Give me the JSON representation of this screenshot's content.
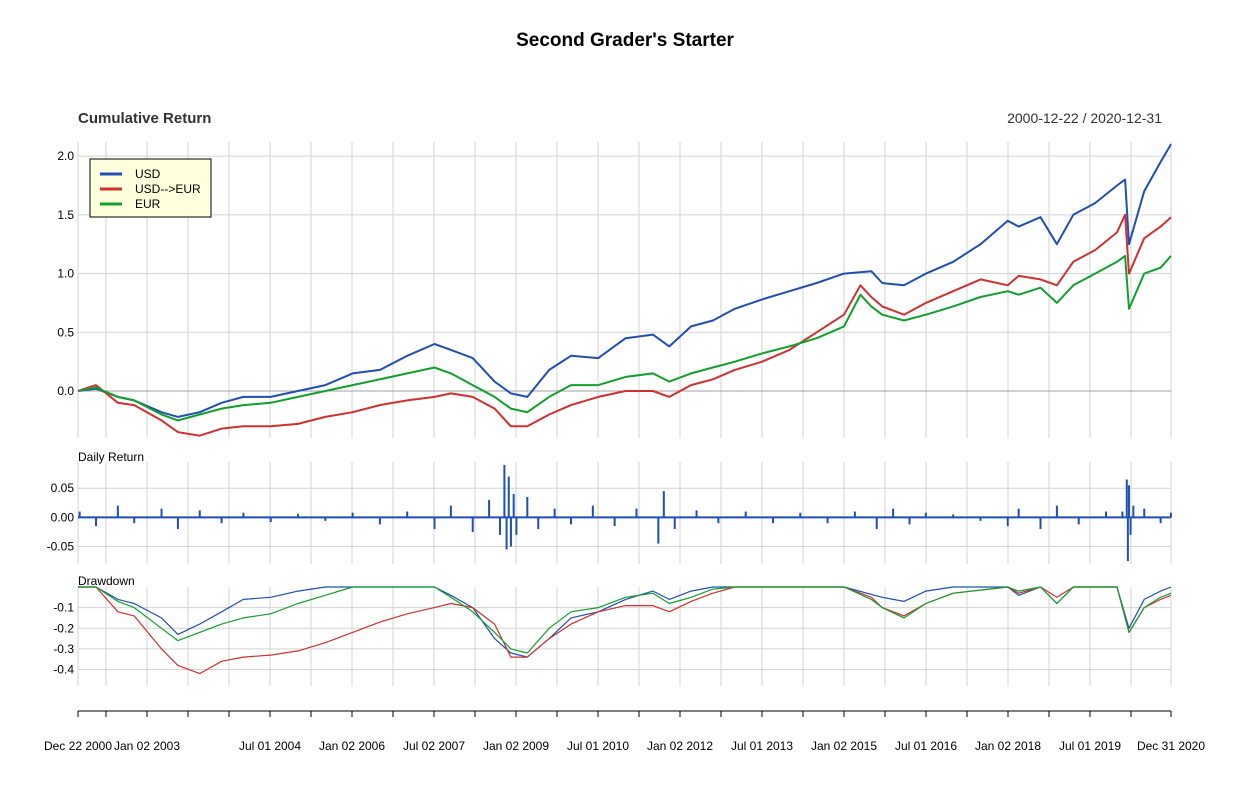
{
  "title": "Second Grader's Starter",
  "panels": {
    "cumulative": {
      "label": "Cumulative Return",
      "date_range": "2000-12-22 / 2020-12-31"
    },
    "daily": {
      "label": "Daily Return"
    },
    "drawdown": {
      "label": "Drawdown"
    }
  },
  "legend": [
    {
      "name": "USD",
      "color": "#1f4fb2"
    },
    {
      "name": "USD-->EUR",
      "color": "#d03030"
    },
    {
      "name": "EUR",
      "color": "#12a02c"
    }
  ],
  "x_axis": {
    "labels": [
      "Dec 22 2000",
      "Jan 02 2003",
      "Jul 01 2004",
      "Jan 02 2006",
      "Jul 02 2007",
      "Jan 02 2009",
      "Jul 01 2010",
      "Jan 02 2012",
      "Jul 01 2013",
      "Jan 02 2015",
      "Jul 01 2016",
      "Jan 02 2018",
      "Jul 01 2019",
      "Dec 31 2020"
    ]
  },
  "chart_data": [
    {
      "type": "line",
      "title": "Cumulative Return",
      "x_range": [
        2000.97,
        2020.99
      ],
      "ylim": [
        -0.4,
        2.12
      ],
      "y_ticks": [
        "0.0",
        "0.5",
        "1.0",
        "1.5",
        "2.0"
      ],
      "series": [
        {
          "name": "USD",
          "color": "#1f4fb2",
          "x": [
            2000.97,
            2001.3,
            2001.7,
            2002.0,
            2002.5,
            2002.8,
            2003.2,
            2003.6,
            2004.0,
            2004.5,
            2005.0,
            2005.5,
            2006.0,
            2006.5,
            2007.0,
            2007.5,
            2007.8,
            2008.2,
            2008.6,
            2008.9,
            2009.2,
            2009.6,
            2010.0,
            2010.5,
            2011.0,
            2011.5,
            2011.8,
            2012.2,
            2012.6,
            2013.0,
            2013.5,
            2014.0,
            2014.5,
            2015.0,
            2015.5,
            2015.7,
            2016.1,
            2016.5,
            2017.0,
            2017.5,
            2018.0,
            2018.2,
            2018.6,
            2018.9,
            2019.2,
            2019.6,
            2020.0,
            2020.15,
            2020.22,
            2020.5,
            2020.8,
            2020.99
          ],
          "y": [
            0.0,
            0.02,
            -0.05,
            -0.08,
            -0.18,
            -0.22,
            -0.18,
            -0.1,
            -0.05,
            -0.05,
            0.0,
            0.05,
            0.15,
            0.18,
            0.3,
            0.4,
            0.35,
            0.28,
            0.08,
            -0.02,
            -0.05,
            0.18,
            0.3,
            0.28,
            0.45,
            0.48,
            0.38,
            0.55,
            0.6,
            0.7,
            0.78,
            0.85,
            0.92,
            1.0,
            1.02,
            0.92,
            0.9,
            1.0,
            1.1,
            1.25,
            1.45,
            1.4,
            1.48,
            1.25,
            1.5,
            1.6,
            1.75,
            1.8,
            1.25,
            1.7,
            1.95,
            2.1
          ]
        },
        {
          "name": "USD-->EUR",
          "color": "#d03030",
          "x": [
            2000.97,
            2001.3,
            2001.7,
            2002.0,
            2002.5,
            2002.8,
            2003.2,
            2003.6,
            2004.0,
            2004.5,
            2005.0,
            2005.5,
            2006.0,
            2006.5,
            2007.0,
            2007.5,
            2007.8,
            2008.2,
            2008.6,
            2008.9,
            2009.2,
            2009.6,
            2010.0,
            2010.5,
            2011.0,
            2011.5,
            2011.8,
            2012.2,
            2012.6,
            2013.0,
            2013.5,
            2014.0,
            2014.5,
            2015.0,
            2015.3,
            2015.5,
            2015.7,
            2016.1,
            2016.5,
            2017.0,
            2017.5,
            2018.0,
            2018.2,
            2018.6,
            2018.9,
            2019.2,
            2019.6,
            2020.0,
            2020.15,
            2020.22,
            2020.5,
            2020.8,
            2020.99
          ],
          "y": [
            0.0,
            0.05,
            -0.1,
            -0.12,
            -0.25,
            -0.35,
            -0.38,
            -0.32,
            -0.3,
            -0.3,
            -0.28,
            -0.22,
            -0.18,
            -0.12,
            -0.08,
            -0.05,
            -0.02,
            -0.05,
            -0.15,
            -0.3,
            -0.3,
            -0.2,
            -0.12,
            -0.05,
            0.0,
            0.0,
            -0.05,
            0.05,
            0.1,
            0.18,
            0.25,
            0.35,
            0.5,
            0.65,
            0.9,
            0.8,
            0.72,
            0.65,
            0.75,
            0.85,
            0.95,
            0.9,
            0.98,
            0.95,
            0.9,
            1.1,
            1.2,
            1.35,
            1.5,
            1.0,
            1.3,
            1.4,
            1.48
          ]
        },
        {
          "name": "EUR",
          "color": "#12a02c",
          "x": [
            2000.97,
            2001.3,
            2001.7,
            2002.0,
            2002.5,
            2002.8,
            2003.2,
            2003.6,
            2004.0,
            2004.5,
            2005.0,
            2005.5,
            2006.0,
            2006.5,
            2007.0,
            2007.5,
            2007.8,
            2008.2,
            2008.6,
            2008.9,
            2009.2,
            2009.6,
            2010.0,
            2010.5,
            2011.0,
            2011.5,
            2011.8,
            2012.2,
            2012.6,
            2013.0,
            2013.5,
            2014.0,
            2014.5,
            2015.0,
            2015.3,
            2015.5,
            2015.7,
            2016.1,
            2016.5,
            2017.0,
            2017.5,
            2018.0,
            2018.2,
            2018.6,
            2018.9,
            2019.2,
            2019.6,
            2020.0,
            2020.15,
            2020.22,
            2020.5,
            2020.8,
            2020.99
          ],
          "y": [
            0.0,
            0.03,
            -0.05,
            -0.08,
            -0.2,
            -0.25,
            -0.2,
            -0.15,
            -0.12,
            -0.1,
            -0.05,
            0.0,
            0.05,
            0.1,
            0.15,
            0.2,
            0.15,
            0.05,
            -0.05,
            -0.15,
            -0.18,
            -0.05,
            0.05,
            0.05,
            0.12,
            0.15,
            0.08,
            0.15,
            0.2,
            0.25,
            0.32,
            0.38,
            0.45,
            0.55,
            0.82,
            0.72,
            0.65,
            0.6,
            0.65,
            0.72,
            0.8,
            0.85,
            0.82,
            0.88,
            0.75,
            0.9,
            1.0,
            1.1,
            1.15,
            0.7,
            1.0,
            1.05,
            1.15
          ]
        }
      ]
    },
    {
      "type": "bar",
      "title": "Daily Return",
      "x_range": [
        2000.97,
        2020.99
      ],
      "ylim": [
        -0.08,
        0.095
      ],
      "y_ticks": [
        "-0.05",
        "0.00",
        "0.05"
      ],
      "series": [
        {
          "name": "USD",
          "color": "#1f4fb2",
          "x": [
            2001.0,
            2001.3,
            2001.7,
            2002.0,
            2002.5,
            2002.8,
            2003.2,
            2003.6,
            2004.0,
            2004.5,
            2005.0,
            2005.5,
            2006.0,
            2006.5,
            2007.0,
            2007.5,
            2007.8,
            2008.2,
            2008.5,
            2008.7,
            2008.78,
            2008.82,
            2008.86,
            2008.9,
            2008.95,
            2009.0,
            2009.2,
            2009.4,
            2009.7,
            2010.0,
            2010.4,
            2010.8,
            2011.2,
            2011.6,
            2011.7,
            2011.9,
            2012.3,
            2012.7,
            2013.2,
            2013.7,
            2014.2,
            2014.7,
            2015.2,
            2015.6,
            2015.9,
            2016.2,
            2016.5,
            2017.0,
            2017.5,
            2018.0,
            2018.2,
            2018.6,
            2018.9,
            2019.3,
            2019.8,
            2020.1,
            2020.18,
            2020.2,
            2020.22,
            2020.25,
            2020.3,
            2020.5,
            2020.8,
            2020.99
          ],
          "y": [
            0.01,
            -0.015,
            0.02,
            -0.01,
            0.015,
            -0.02,
            0.012,
            -0.01,
            0.008,
            -0.008,
            0.006,
            -0.006,
            0.008,
            -0.012,
            0.01,
            -0.02,
            0.02,
            -0.025,
            0.03,
            -0.03,
            0.09,
            -0.055,
            0.07,
            -0.05,
            0.04,
            -0.03,
            0.035,
            -0.02,
            0.015,
            -0.012,
            0.02,
            -0.015,
            0.015,
            -0.045,
            0.045,
            -0.02,
            0.012,
            -0.01,
            0.01,
            -0.01,
            0.008,
            -0.01,
            0.01,
            -0.02,
            0.015,
            -0.012,
            0.008,
            0.005,
            -0.006,
            -0.015,
            0.015,
            -0.02,
            0.02,
            -0.012,
            0.01,
            0.01,
            0.065,
            -0.075,
            0.055,
            -0.03,
            0.02,
            0.015,
            -0.01,
            0.008
          ]
        }
      ]
    },
    {
      "type": "line",
      "title": "Drawdown",
      "x_range": [
        2000.97,
        2020.99
      ],
      "ylim": [
        -0.48,
        0.0
      ],
      "y_ticks": [
        "-0.1",
        "-0.2",
        "-0.3",
        "-0.4"
      ],
      "series": [
        {
          "name": "USD",
          "color": "#1f4fb2",
          "x": [
            2000.97,
            2001.3,
            2001.7,
            2002.0,
            2002.5,
            2002.8,
            2003.2,
            2003.6,
            2004.0,
            2004.5,
            2005.0,
            2005.5,
            2006.0,
            2006.5,
            2007.0,
            2007.5,
            2007.8,
            2008.2,
            2008.6,
            2008.9,
            2009.2,
            2009.6,
            2010.0,
            2010.5,
            2011.0,
            2011.5,
            2011.8,
            2012.2,
            2012.6,
            2013.0,
            2014.0,
            2015.0,
            2015.7,
            2016.1,
            2016.5,
            2017.0,
            2018.0,
            2018.2,
            2018.6,
            2018.9,
            2019.2,
            2020.0,
            2020.22,
            2020.5,
            2020.8,
            2020.99
          ],
          "y": [
            0.0,
            0.0,
            -0.06,
            -0.08,
            -0.15,
            -0.23,
            -0.18,
            -0.12,
            -0.06,
            -0.05,
            -0.02,
            0.0,
            0.0,
            0.0,
            0.0,
            0.0,
            -0.04,
            -0.1,
            -0.25,
            -0.32,
            -0.34,
            -0.25,
            -0.15,
            -0.12,
            -0.06,
            -0.02,
            -0.06,
            -0.02,
            0.0,
            0.0,
            0.0,
            0.0,
            -0.05,
            -0.07,
            -0.02,
            0.0,
            0.0,
            -0.04,
            0.0,
            -0.08,
            0.0,
            0.0,
            -0.2,
            -0.06,
            -0.02,
            0.0
          ]
        },
        {
          "name": "USD-->EUR",
          "color": "#d03030",
          "x": [
            2000.97,
            2001.3,
            2001.7,
            2002.0,
            2002.5,
            2002.8,
            2003.2,
            2003.6,
            2004.0,
            2004.5,
            2005.0,
            2005.5,
            2006.0,
            2006.5,
            2007.0,
            2007.5,
            2007.8,
            2008.2,
            2008.6,
            2008.9,
            2009.2,
            2009.6,
            2010.0,
            2010.5,
            2011.0,
            2011.5,
            2011.8,
            2012.2,
            2012.6,
            2013.0,
            2014.0,
            2015.0,
            2015.5,
            2015.7,
            2016.1,
            2016.5,
            2017.0,
            2018.0,
            2018.2,
            2018.6,
            2018.9,
            2019.2,
            2020.0,
            2020.22,
            2020.5,
            2020.8,
            2020.99
          ],
          "y": [
            0.0,
            0.0,
            -0.12,
            -0.14,
            -0.3,
            -0.38,
            -0.42,
            -0.36,
            -0.34,
            -0.33,
            -0.31,
            -0.27,
            -0.22,
            -0.17,
            -0.13,
            -0.1,
            -0.08,
            -0.1,
            -0.18,
            -0.34,
            -0.34,
            -0.25,
            -0.18,
            -0.12,
            -0.09,
            -0.09,
            -0.12,
            -0.07,
            -0.03,
            0.0,
            0.0,
            0.0,
            -0.05,
            -0.1,
            -0.14,
            -0.08,
            -0.03,
            0.0,
            -0.03,
            0.0,
            -0.05,
            0.0,
            0.0,
            -0.22,
            -0.1,
            -0.06,
            -0.04
          ]
        },
        {
          "name": "EUR",
          "color": "#12a02c",
          "x": [
            2000.97,
            2001.3,
            2001.7,
            2002.0,
            2002.5,
            2002.8,
            2003.2,
            2003.6,
            2004.0,
            2004.5,
            2005.0,
            2005.5,
            2006.0,
            2006.5,
            2007.0,
            2007.5,
            2007.8,
            2008.2,
            2008.6,
            2008.9,
            2009.2,
            2009.6,
            2010.0,
            2010.5,
            2011.0,
            2011.5,
            2011.8,
            2012.2,
            2012.6,
            2013.0,
            2014.0,
            2015.0,
            2015.5,
            2015.7,
            2016.1,
            2016.5,
            2017.0,
            2018.0,
            2018.2,
            2018.6,
            2018.9,
            2019.2,
            2020.0,
            2020.22,
            2020.5,
            2020.8,
            2020.99
          ],
          "y": [
            0.0,
            0.0,
            -0.07,
            -0.1,
            -0.2,
            -0.26,
            -0.22,
            -0.18,
            -0.15,
            -0.13,
            -0.08,
            -0.04,
            0.0,
            0.0,
            0.0,
            0.0,
            -0.05,
            -0.12,
            -0.22,
            -0.3,
            -0.32,
            -0.2,
            -0.12,
            -0.1,
            -0.05,
            -0.03,
            -0.08,
            -0.05,
            -0.01,
            0.0,
            0.0,
            0.0,
            -0.06,
            -0.1,
            -0.15,
            -0.08,
            -0.03,
            0.0,
            -0.02,
            0.0,
            -0.08,
            0.0,
            0.0,
            -0.22,
            -0.1,
            -0.05,
            -0.03
          ]
        }
      ]
    }
  ]
}
